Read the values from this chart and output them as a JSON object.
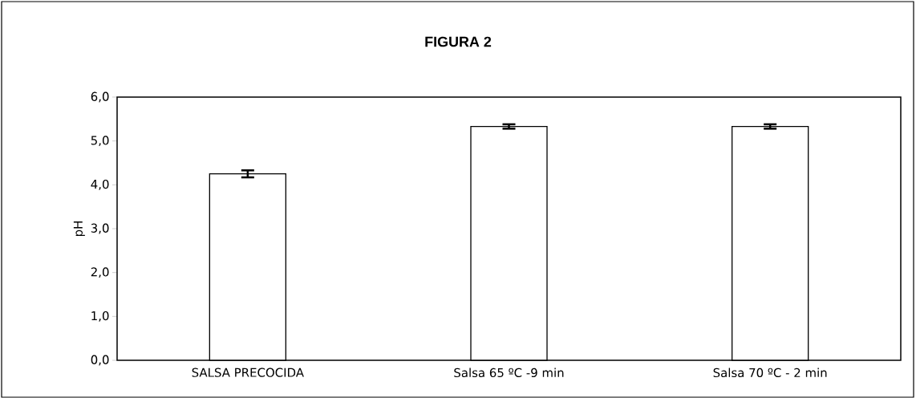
{
  "chart_data": {
    "type": "bar",
    "title": "FIGURA 2",
    "ylabel": "pH",
    "categories": [
      "SALSA PRECOCIDA",
      "Salsa 65 ºC -9 min",
      "Salsa 70 ºC - 2 min"
    ],
    "values": [
      4.25,
      5.33,
      5.33
    ],
    "errors": [
      0.08,
      0.05,
      0.05
    ],
    "color": "#ffffff",
    "ylim": [
      0,
      6
    ],
    "yticks": [
      {
        "value": 0,
        "label": "0,0"
      },
      {
        "value": 1,
        "label": "1,0"
      },
      {
        "value": 2,
        "label": "2,0"
      },
      {
        "value": 3,
        "label": "3,0"
      },
      {
        "value": 4,
        "label": "4,0"
      },
      {
        "value": 5,
        "label": "5,0"
      },
      {
        "value": 6,
        "label": "6,0"
      }
    ],
    "grid": false
  }
}
